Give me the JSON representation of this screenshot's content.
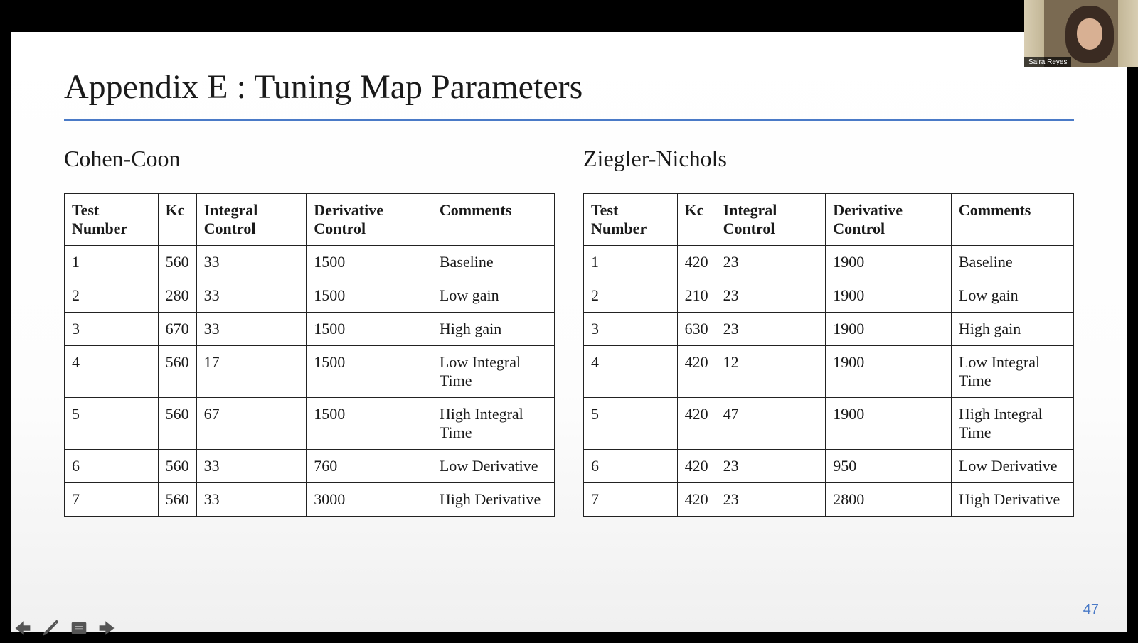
{
  "slide": {
    "title": "Appendix E : Tuning Map Parameters",
    "title_fontsize": 48,
    "rule_color": "#4a7ac7",
    "page_number": "47",
    "background_gradient": [
      "#ffffff",
      "#f0f0f0"
    ]
  },
  "tables": {
    "type": "table",
    "cell_fontsize": 22,
    "header_fontweight": "bold",
    "border_color": "#222222",
    "column_headers": [
      "Test Number",
      "Kc",
      "Integral Control",
      "Derivative Control",
      "Comments"
    ],
    "left": {
      "caption": "Cohen-Coon",
      "caption_fontsize": 32,
      "rows": [
        [
          "1",
          "560",
          "33",
          "1500",
          "Baseline"
        ],
        [
          "2",
          "280",
          "33",
          "1500",
          "Low gain"
        ],
        [
          "3",
          "670",
          "33",
          "1500",
          "High gain"
        ],
        [
          "4",
          "560",
          "17",
          "1500",
          "Low Integral Time"
        ],
        [
          "5",
          "560",
          "67",
          "1500",
          "High Integral Time"
        ],
        [
          "6",
          "560",
          "33",
          "760",
          "Low Derivative"
        ],
        [
          "7",
          "560",
          "33",
          "3000",
          "High Derivative"
        ]
      ]
    },
    "right": {
      "caption": "Ziegler-Nichols",
      "caption_fontsize": 32,
      "rows": [
        [
          "1",
          "420",
          "23",
          "1900",
          "Baseline"
        ],
        [
          "2",
          "210",
          "23",
          "1900",
          "Low gain"
        ],
        [
          "3",
          "630",
          "23",
          "1900",
          "High gain"
        ],
        [
          "4",
          "420",
          "12",
          "1900",
          "Low Integral Time"
        ],
        [
          "5",
          "420",
          "47",
          "1900",
          "High Integral Time"
        ],
        [
          "6",
          "420",
          "23",
          "950",
          "Low Derivative"
        ],
        [
          "7",
          "420",
          "23",
          "2800",
          "High Derivative"
        ]
      ]
    }
  },
  "toolbar": {
    "icons": [
      "arrow-left",
      "pencil",
      "notes",
      "arrow-right"
    ],
    "icon_color": "#555555"
  },
  "webcam": {
    "participant_name": "Saira Reyes",
    "background_color": "#7a6a52",
    "label_bg": "rgba(0,0,0,0.7)",
    "label_color": "#ffffff"
  }
}
